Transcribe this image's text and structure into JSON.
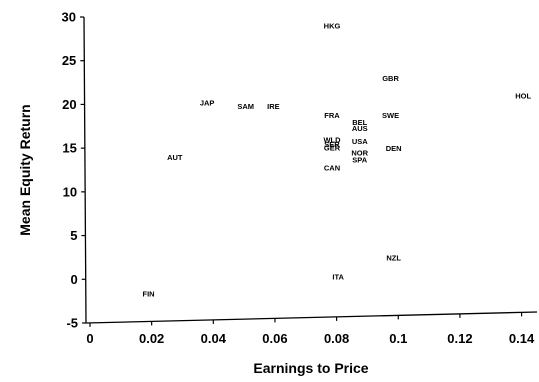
{
  "chart_data": {
    "type": "scatter",
    "title": "",
    "xlabel": "Earnings to Price",
    "ylabel": "Mean Equity Return",
    "xlim": [
      0,
      0.145
    ],
    "ylim": [
      -5,
      30
    ],
    "xticks": [
      0,
      0.02,
      0.04,
      0.06,
      0.08,
      0.1,
      0.12,
      0.14
    ],
    "xtick_labels": [
      "0",
      "0.02",
      "0.04",
      "0.06",
      "0.08",
      "0.1",
      "0.12",
      "0.14"
    ],
    "yticks": [
      -5,
      0,
      5,
      10,
      15,
      20,
      25,
      30
    ],
    "ytick_labels": [
      "-5",
      "0",
      "5",
      "10",
      "15",
      "20",
      "25",
      "30"
    ],
    "grid": false,
    "points": [
      {
        "label": "HKG",
        "x": 0.0785,
        "y": 29.0
      },
      {
        "label": "GBR",
        "x": 0.0975,
        "y": 23.0
      },
      {
        "label": "HOL",
        "x": 0.1405,
        "y": 21.0
      },
      {
        "label": "JAP",
        "x": 0.038,
        "y": 20.2
      },
      {
        "label": "SAM",
        "x": 0.0505,
        "y": 19.8
      },
      {
        "label": "IRE",
        "x": 0.0595,
        "y": 19.8
      },
      {
        "label": "FRA",
        "x": 0.0785,
        "y": 18.8
      },
      {
        "label": "SWE",
        "x": 0.0975,
        "y": 18.8
      },
      {
        "label": "BEL",
        "x": 0.0875,
        "y": 18.0
      },
      {
        "label": "AUS",
        "x": 0.0875,
        "y": 17.3
      },
      {
        "label": "WLD",
        "x": 0.0785,
        "y": 16.0
      },
      {
        "label": "USA",
        "x": 0.0875,
        "y": 15.8
      },
      {
        "label": "SER",
        "x": 0.0785,
        "y": 15.5
      },
      {
        "label": "GER",
        "x": 0.0785,
        "y": 15.1
      },
      {
        "label": "DEN",
        "x": 0.0985,
        "y": 15.0
      },
      {
        "label": "NOR",
        "x": 0.0875,
        "y": 14.5
      },
      {
        "label": "SPA",
        "x": 0.0875,
        "y": 13.7
      },
      {
        "label": "AUT",
        "x": 0.0275,
        "y": 14.0
      },
      {
        "label": "CAN",
        "x": 0.0785,
        "y": 12.8
      },
      {
        "label": "NZL",
        "x": 0.0985,
        "y": 2.5
      },
      {
        "label": "ITA",
        "x": 0.0805,
        "y": 0.3
      },
      {
        "label": "FIN",
        "x": 0.019,
        "y": -1.6
      }
    ]
  }
}
